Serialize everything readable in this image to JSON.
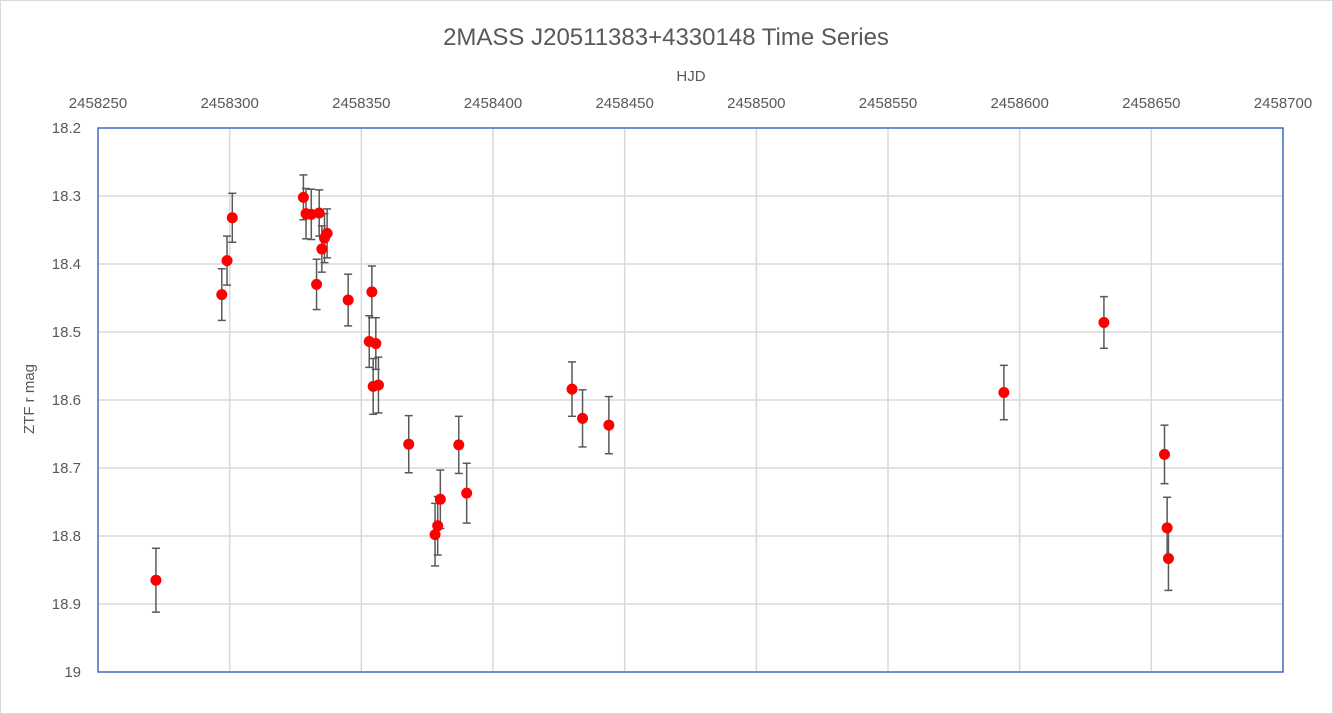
{
  "chart_data": {
    "type": "scatter",
    "title": "2MASS J20511383+4330148 Time Series",
    "xlabel": "HJD",
    "ylabel": "ZTF r mag",
    "xlim": [
      2458250,
      2458700
    ],
    "ylim": [
      18.2,
      19
    ],
    "y_reversed": true,
    "x_axis_position": "top",
    "grid": true,
    "legend": "none",
    "x_ticks": [
      "2458250",
      "2458300",
      "2458350",
      "2458400",
      "2458450",
      "2458500",
      "2458550",
      "2458600",
      "2458650",
      "2458700"
    ],
    "y_ticks": [
      "18.2",
      "18.3",
      "18.4",
      "18.5",
      "18.6",
      "18.7",
      "18.8",
      "18.9",
      "19"
    ],
    "colors": {
      "marker": "#ff0000",
      "error_bar": "#595959",
      "grid": "#d9d9d9",
      "plot_border": "#4472c4"
    },
    "series": [
      {
        "points": [
          {
            "x": 2458272,
            "y": 18.865,
            "err": 0.047
          },
          {
            "x": 2458297,
            "y": 18.445,
            "err": 0.038
          },
          {
            "x": 2458299,
            "y": 18.395,
            "err": 0.036
          },
          {
            "x": 2458301,
            "y": 18.332,
            "err": 0.036
          },
          {
            "x": 2458328,
            "y": 18.302,
            "err": 0.033
          },
          {
            "x": 2458329,
            "y": 18.326,
            "err": 0.037
          },
          {
            "x": 2458331,
            "y": 18.327,
            "err": 0.037
          },
          {
            "x": 2458333,
            "y": 18.43,
            "err": 0.037
          },
          {
            "x": 2458334,
            "y": 18.325,
            "err": 0.034
          },
          {
            "x": 2458335,
            "y": 18.378,
            "err": 0.034
          },
          {
            "x": 2458336,
            "y": 18.362,
            "err": 0.036
          },
          {
            "x": 2458337,
            "y": 18.355,
            "err": 0.036
          },
          {
            "x": 2458345,
            "y": 18.453,
            "err": 0.038
          },
          {
            "x": 2458353,
            "y": 18.514,
            "err": 0.038
          },
          {
            "x": 2458354,
            "y": 18.441,
            "err": 0.038
          },
          {
            "x": 2458354.5,
            "y": 18.58,
            "err": 0.041
          },
          {
            "x": 2458355.5,
            "y": 18.517,
            "err": 0.038
          },
          {
            "x": 2458356.5,
            "y": 18.578,
            "err": 0.041
          },
          {
            "x": 2458368,
            "y": 18.665,
            "err": 0.042
          },
          {
            "x": 2458378,
            "y": 18.798,
            "err": 0.046
          },
          {
            "x": 2458379,
            "y": 18.785,
            "err": 0.043
          },
          {
            "x": 2458380,
            "y": 18.746,
            "err": 0.043
          },
          {
            "x": 2458387,
            "y": 18.666,
            "err": 0.042
          },
          {
            "x": 2458390,
            "y": 18.737,
            "err": 0.044
          },
          {
            "x": 2458430,
            "y": 18.584,
            "err": 0.04
          },
          {
            "x": 2458434,
            "y": 18.627,
            "err": 0.042
          },
          {
            "x": 2458444,
            "y": 18.637,
            "err": 0.042
          },
          {
            "x": 2458594,
            "y": 18.589,
            "err": 0.04
          },
          {
            "x": 2458632,
            "y": 18.486,
            "err": 0.038
          },
          {
            "x": 2458655,
            "y": 18.68,
            "err": 0.043
          },
          {
            "x": 2458656,
            "y": 18.788,
            "err": 0.045
          },
          {
            "x": 2458656.5,
            "y": 18.833,
            "err": 0.047
          }
        ]
      }
    ]
  }
}
